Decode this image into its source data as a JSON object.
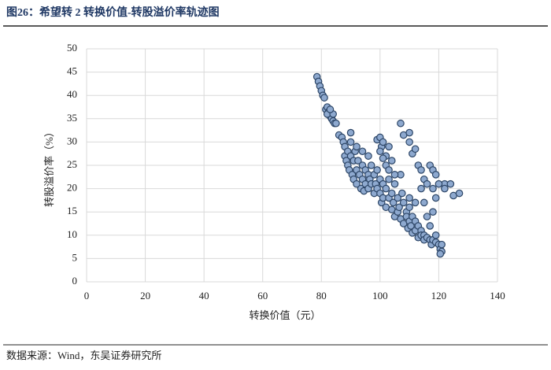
{
  "chart_data": {
    "type": "scatter",
    "title": "图26：希望转 2 转换价值-转股溢价率轨迹图",
    "source": "数据来源：Wind，东吴证券研究所",
    "x_label": "转换价值（元）",
    "y_label": "转股溢价率（%）",
    "xlim": [
      0,
      140
    ],
    "xticks": [
      0,
      20,
      40,
      60,
      80,
      100,
      120,
      140
    ],
    "ylim": [
      0,
      50
    ],
    "yticks": [
      0,
      5,
      10,
      15,
      20,
      25,
      30,
      35,
      40,
      45,
      50
    ],
    "grid": true,
    "series": [
      {
        "color": "#8ea9cf",
        "x": [
          78.5,
          79,
          79.5,
          80,
          80.5,
          81,
          81.5,
          82,
          82.5,
          83,
          83,
          83.5,
          84,
          84.5,
          85,
          82,
          84,
          83,
          86,
          87,
          87.5,
          88,
          88,
          88.5,
          89,
          89,
          89.5,
          90,
          90,
          90.5,
          91,
          91,
          91.5,
          92,
          92,
          92.5,
          93,
          93.5,
          94,
          94,
          94.5,
          95,
          95,
          96,
          96,
          96.5,
          97,
          97,
          98,
          98,
          98.5,
          99,
          99,
          100,
          100,
          100.5,
          101,
          101,
          102,
          102,
          103,
          103,
          104,
          104,
          104.5,
          105,
          105,
          106,
          106,
          106.5,
          107,
          107.5,
          108,
          108,
          109,
          109,
          109.5,
          110,
          110,
          110.5,
          111,
          111,
          112,
          112,
          113,
          113,
          114,
          114,
          115,
          115,
          116,
          117,
          117.5,
          118,
          119,
          120,
          120.5,
          121,
          120.5,
          121,
          99,
          100,
          100.5,
          101,
          102,
          103,
          101,
          102,
          100,
          104,
          107,
          108,
          110,
          110,
          111,
          112,
          113,
          114,
          115,
          116,
          117,
          118,
          118,
          119,
          114,
          115,
          116,
          117,
          119,
          119,
          118,
          122,
          122,
          124,
          125,
          127,
          120,
          110,
          112,
          107,
          105,
          103,
          96,
          94,
          92,
          90
        ],
        "values": [
          44,
          43,
          42,
          41,
          40,
          39.5,
          37,
          37.5,
          36.5,
          36,
          35.5,
          35,
          34.5,
          34,
          34,
          36,
          36,
          37,
          31.5,
          31,
          30,
          29,
          27,
          26,
          28,
          25,
          24,
          30,
          27,
          23,
          26,
          22,
          28,
          24,
          21,
          26,
          23,
          20,
          25,
          22,
          19.5,
          24,
          21,
          23,
          20,
          22,
          25,
          21,
          23,
          19,
          21,
          24,
          20,
          22,
          19,
          17,
          21,
          18,
          20,
          16,
          22,
          18,
          19,
          15.5,
          17,
          21,
          14,
          18,
          15,
          16,
          13.5,
          19,
          17,
          12.5,
          15,
          14,
          11.5,
          16,
          13,
          12,
          14,
          10.5,
          13,
          11,
          12,
          9.5,
          11,
          10,
          10,
          9,
          9.5,
          9,
          8,
          9,
          8.5,
          8,
          7,
          6.5,
          6,
          8,
          30.5,
          31,
          29,
          30,
          27,
          29,
          26.5,
          25,
          28,
          26,
          34,
          31.5,
          32,
          30,
          27.5,
          28.5,
          25,
          24,
          22,
          21,
          25,
          24,
          20,
          23,
          20,
          17,
          14,
          12,
          10,
          18,
          15,
          21,
          20,
          21,
          18.5,
          19,
          21,
          18,
          17,
          23,
          23,
          24,
          27,
          28,
          29,
          32
        ]
      }
    ]
  }
}
